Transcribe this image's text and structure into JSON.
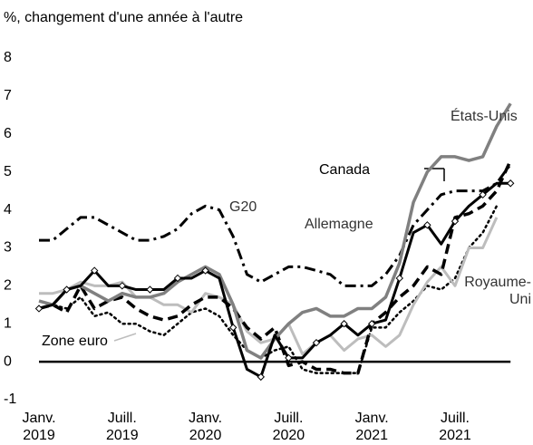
{
  "chart_data": {
    "type": "line",
    "title": "%, changement d'une année à l'autre",
    "categories": [
      "Janv. 2019",
      null,
      null,
      null,
      null,
      null,
      "Juill. 2019",
      null,
      null,
      null,
      null,
      null,
      "Janv. 2020",
      null,
      null,
      null,
      null,
      null,
      "Juill. 2020",
      null,
      null,
      null,
      null,
      null,
      "Janv. 2021",
      null,
      null,
      null,
      null,
      null,
      "Juill. 2021",
      null,
      null,
      null,
      null
    ],
    "ylim": [
      -1,
      8
    ],
    "yticks": [
      -1,
      0,
      1,
      2,
      3,
      4,
      5,
      6,
      7,
      8
    ],
    "series": [
      {
        "name": "G20",
        "color": "#000000",
        "style": "dashdot",
        "values": [
          3.2,
          3.2,
          3.5,
          3.8,
          3.8,
          3.6,
          3.4,
          3.2,
          3.2,
          3.3,
          3.5,
          3.9,
          4.1,
          4.0,
          3.3,
          2.3,
          2.1,
          2.3,
          2.5,
          2.5,
          2.4,
          2.3,
          2.0,
          2.0,
          2.0,
          2.3,
          2.8,
          3.6,
          4.0,
          4.4,
          4.5,
          4.5,
          4.5,
          4.7,
          5.2
        ]
      },
      {
        "name": "Zone euro",
        "color": "#000000",
        "style": "dot",
        "values": [
          1.4,
          1.5,
          1.4,
          1.7,
          1.2,
          1.3,
          1.0,
          1.0,
          0.8,
          0.7,
          1.0,
          1.3,
          1.4,
          1.2,
          0.7,
          0.3,
          0.1,
          0.3,
          0.4,
          -0.2,
          -0.3,
          -0.3,
          -0.3,
          -0.3,
          0.9,
          0.9,
          1.3,
          1.6,
          2.0,
          1.9,
          2.2,
          3.0,
          3.4,
          4.1,
          null
        ]
      },
      {
        "name": "Royaume-Uni",
        "color": "#bdbdbd",
        "style": "solid",
        "values": [
          1.8,
          1.8,
          1.9,
          2.1,
          2.0,
          2.0,
          2.1,
          1.7,
          1.7,
          1.5,
          1.5,
          1.3,
          1.8,
          1.7,
          1.5,
          0.8,
          0.5,
          0.6,
          1.0,
          0.2,
          0.5,
          0.7,
          0.3,
          0.6,
          0.7,
          0.4,
          0.7,
          1.5,
          2.1,
          2.5,
          2.0,
          3.0,
          3.0,
          3.8,
          null
        ]
      },
      {
        "name": "Allemagne",
        "color": "#000000",
        "style": "dash",
        "values": [
          1.4,
          1.5,
          1.3,
          2.0,
          1.4,
          1.6,
          1.7,
          1.4,
          1.2,
          1.1,
          1.2,
          1.5,
          1.7,
          1.7,
          1.4,
          0.9,
          0.6,
          0.9,
          -0.1,
          0.0,
          -0.2,
          -0.2,
          -0.3,
          -0.3,
          1.0,
          1.3,
          1.7,
          2.0,
          2.5,
          2.3,
          3.8,
          3.9,
          4.1,
          4.5,
          5.3
        ]
      },
      {
        "name": "États-Unis",
        "color": "#808080",
        "style": "solid",
        "values": [
          1.6,
          1.5,
          1.9,
          2.0,
          1.8,
          1.6,
          1.8,
          1.7,
          1.7,
          1.8,
          2.1,
          2.3,
          2.5,
          2.3,
          1.5,
          0.3,
          0.1,
          0.6,
          1.0,
          1.3,
          1.4,
          1.2,
          1.2,
          1.4,
          1.4,
          1.7,
          2.6,
          4.2,
          5.0,
          5.4,
          5.4,
          5.3,
          5.4,
          6.2,
          6.8
        ]
      },
      {
        "name": "Canada",
        "color": "#000000",
        "style": "marker",
        "values": [
          1.4,
          1.5,
          1.9,
          2.0,
          2.4,
          2.0,
          2.0,
          1.9,
          1.9,
          1.9,
          2.2,
          2.2,
          2.4,
          2.2,
          0.9,
          -0.2,
          -0.4,
          0.7,
          0.1,
          0.1,
          0.5,
          0.7,
          1.0,
          0.7,
          1.0,
          1.1,
          2.2,
          3.4,
          3.6,
          3.1,
          3.7,
          4.1,
          4.4,
          4.7,
          4.7
        ]
      }
    ]
  }
}
